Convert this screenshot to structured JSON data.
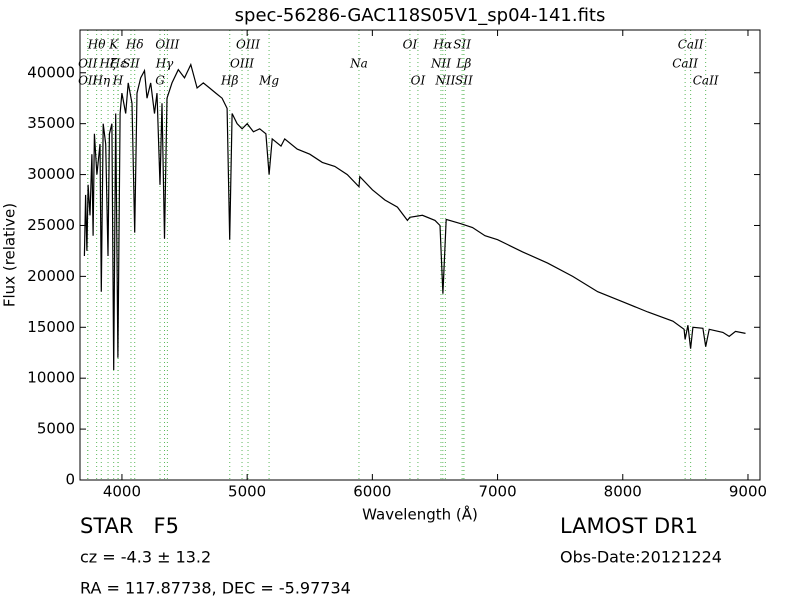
{
  "chart_data": {
    "type": "line",
    "title": "spec-56286-GAC118S05V1_sp04-141.fits",
    "x_label": "Wavelength (Å)",
    "y_label": "Flux (relative)",
    "xlim": [
      3665,
      9096
    ],
    "ylim": [
      0,
      44200
    ],
    "xticks": [
      4000,
      5000,
      6000,
      7000,
      8000,
      9000
    ],
    "yticks": [
      0,
      5000,
      10000,
      15000,
      20000,
      25000,
      30000,
      35000,
      40000
    ],
    "line_color": "#5cb85c",
    "line_labels": [
      [
        {
          "label": "Hθ",
          "wavelength": 3798
        },
        {
          "label": "K",
          "wavelength": 3934
        },
        {
          "label": "Hδ",
          "wavelength": 4102
        },
        {
          "label": "OIII",
          "wavelength": 4363
        },
        {
          "label": "OIII",
          "wavelength": 5007
        },
        {
          "label": "OI",
          "wavelength": 6300
        },
        {
          "label": "Hα",
          "wavelength": 6563
        },
        {
          "label": "SII",
          "wavelength": 6717
        },
        {
          "label": "CaII",
          "wavelength": 8542
        }
      ],
      [
        {
          "label": "OII",
          "wavelength": 3727
        },
        {
          "label": "Hζ",
          "wavelength": 3889
        },
        {
          "label": "Hε",
          "wavelength": 3970
        },
        {
          "label": "SII",
          "wavelength": 4072
        },
        {
          "label": "Hγ",
          "wavelength": 4340
        },
        {
          "label": "OIII",
          "wavelength": 4959
        },
        {
          "label": "Na",
          "wavelength": 5893
        },
        {
          "label": "NII",
          "wavelength": 6548
        },
        {
          "label": "Lβ",
          "wavelength": 6731
        },
        {
          "label": "CaII",
          "wavelength": 8498
        }
      ],
      [
        {
          "label": "OII",
          "wavelength": 3727
        },
        {
          "label": "Hη",
          "wavelength": 3835
        },
        {
          "label": "H",
          "wavelength": 3968
        },
        {
          "label": "G",
          "wavelength": 4304
        },
        {
          "label": "Hβ",
          "wavelength": 4861
        },
        {
          "label": "Mg",
          "wavelength": 5175
        },
        {
          "label": "OI",
          "wavelength": 6364
        },
        {
          "label": "NII",
          "wavelength": 6583
        },
        {
          "label": "SII",
          "wavelength": 6731
        },
        {
          "label": "CaII",
          "wavelength": 8662
        }
      ]
    ],
    "series": [
      {
        "name": "flux",
        "color": "#000000",
        "x": [
          3700,
          3710,
          3720,
          3730,
          3745,
          3760,
          3770,
          3780,
          3800,
          3825,
          3835,
          3850,
          3870,
          3889,
          3900,
          3920,
          3934,
          3950,
          3968,
          3985,
          4000,
          4030,
          4050,
          4080,
          4102,
          4120,
          4150,
          4180,
          4200,
          4230,
          4260,
          4280,
          4304,
          4320,
          4340,
          4360,
          4400,
          4450,
          4500,
          4550,
          4600,
          4650,
          4700,
          4750,
          4800,
          4840,
          4861,
          4880,
          4920,
          4960,
          5000,
          5050,
          5100,
          5150,
          5175,
          5200,
          5270,
          5300,
          5400,
          5500,
          5600,
          5700,
          5800,
          5893,
          5900,
          6000,
          6100,
          6200,
          6280,
          6300,
          6400,
          6500,
          6540,
          6563,
          6590,
          6700,
          6800,
          6900,
          7000,
          7200,
          7400,
          7600,
          7800,
          8000,
          8200,
          8400,
          8490,
          8498,
          8520,
          8542,
          8560,
          8640,
          8662,
          8690,
          8800,
          8850,
          8900,
          8980
        ],
        "values": [
          22000,
          28000,
          22500,
          29000,
          26000,
          32000,
          24000,
          34000,
          30000,
          33000,
          18500,
          35000,
          33000,
          22000,
          34000,
          35000,
          10800,
          36000,
          12000,
          36000,
          38000,
          36000,
          39000,
          37000,
          24300,
          38000,
          39500,
          40200,
          37500,
          39000,
          36000,
          38000,
          29000,
          37000,
          23700,
          37500,
          39000,
          40300,
          39500,
          40800,
          38500,
          39000,
          38500,
          38000,
          37500,
          36500,
          23600,
          36000,
          35000,
          34500,
          35000,
          34200,
          34500,
          34000,
          30000,
          33500,
          32800,
          33500,
          32500,
          32000,
          31200,
          30800,
          30000,
          28800,
          29800,
          28500,
          27500,
          26800,
          25500,
          25800,
          26000,
          25500,
          25000,
          18300,
          25600,
          25200,
          24800,
          24000,
          23600,
          22400,
          21300,
          20000,
          18500,
          17500,
          16500,
          15600,
          14800,
          13800,
          15200,
          12900,
          15000,
          14900,
          13100,
          14800,
          14500,
          14100,
          14600,
          14400
        ]
      }
    ]
  },
  "footer": {
    "object": "STAR   F5",
    "cz": "cz = -4.3 ± 13.2",
    "coords": "RA = 117.87738, DEC = -5.97734",
    "survey": "LAMOST DR1",
    "date": "Obs-Date:20121224"
  }
}
